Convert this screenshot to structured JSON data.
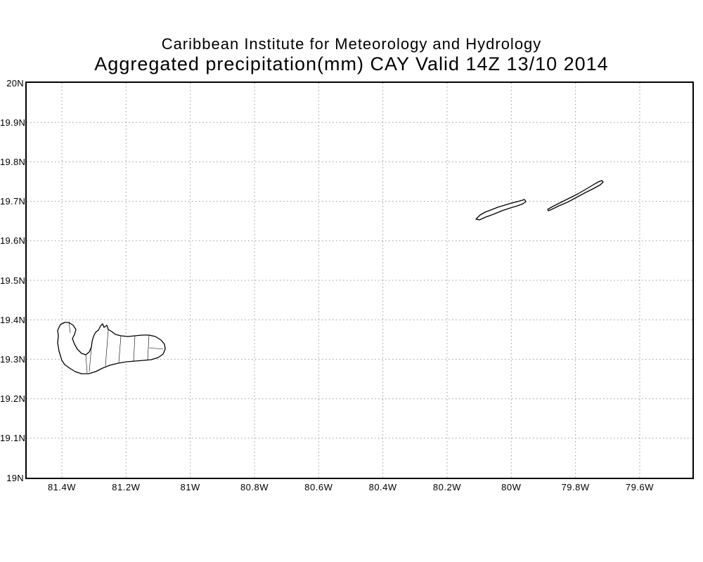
{
  "title": {
    "line1": "Caribbean Institute for Meteorology and Hydrology",
    "line2": "Aggregated precipitation(mm) CAY Valid 14Z 13/10 2014"
  },
  "map": {
    "type": "geographic-plot",
    "grid_style": "dotted",
    "x_axis": {
      "labels": [
        "81.4W",
        "81.2W",
        "81W",
        "80.8W",
        "80.6W",
        "80.4W",
        "80.2W",
        "80W",
        "79.8W",
        "79.6W"
      ]
    },
    "y_axis": {
      "labels": [
        "20N",
        "19.9N",
        "19.8N",
        "19.7N",
        "19.6N",
        "19.5N",
        "19.4N",
        "19.3N",
        "19.2N",
        "19.1N",
        "19N"
      ]
    },
    "colors": {
      "outline": "#000000",
      "grid": "#999999",
      "background": "#ffffff"
    }
  }
}
